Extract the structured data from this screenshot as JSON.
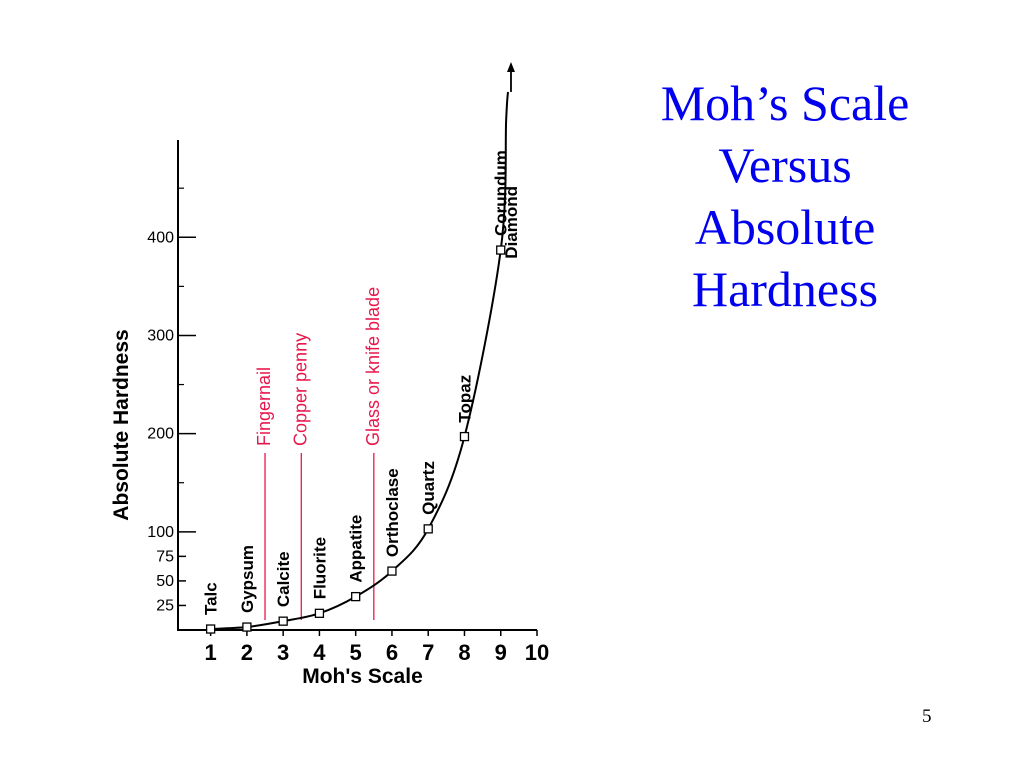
{
  "slide": {
    "title_lines": [
      "Moh’s Scale",
      "Versus",
      "Absolute",
      "Hardness"
    ],
    "page_number": "5"
  },
  "colors": {
    "title": "#0000ee",
    "reference": "#e8174b",
    "curve": "#000000"
  },
  "chart_data": {
    "type": "line",
    "title": "",
    "xlabel": "Moh's Scale",
    "ylabel": "Absolute Hardness",
    "x_ticks": [
      "1",
      "2",
      "3",
      "4",
      "5",
      "6",
      "7",
      "8",
      "9",
      "10"
    ],
    "y_ticks": [
      25,
      50,
      75,
      100,
      200,
      300,
      400
    ],
    "y_tick_labels": [
      "25",
      "50",
      "75",
      "100",
      "200",
      "300",
      "400"
    ],
    "xlim": [
      0.1,
      10
    ],
    "ylim": [
      0,
      550
    ],
    "series": [
      {
        "name": "",
        "points": [
          {
            "mineral": "Talc",
            "x": 1,
            "y": 1
          },
          {
            "mineral": "Gypsum",
            "x": 2,
            "y": 3
          },
          {
            "mineral": "Calcite",
            "x": 3,
            "y": 9
          },
          {
            "mineral": "Fluorite",
            "x": 4,
            "y": 17
          },
          {
            "mineral": "Appatite",
            "x": 5,
            "y": 34
          },
          {
            "mineral": "Orthoclase",
            "x": 6,
            "y": 60
          },
          {
            "mineral": "Quartz",
            "x": 7,
            "y": 103
          },
          {
            "mineral": "Topaz",
            "x": 8,
            "y": 197
          },
          {
            "mineral": "Corundum",
            "x": 9,
            "y": 387
          }
        ]
      }
    ],
    "top_label": "Diamond",
    "reference_lines": [
      {
        "label": "Fingernail",
        "x": 2.5
      },
      {
        "label": "Copper penny",
        "x": 3.5
      },
      {
        "label": "Glass or knife blade",
        "x": 5.5
      }
    ]
  }
}
